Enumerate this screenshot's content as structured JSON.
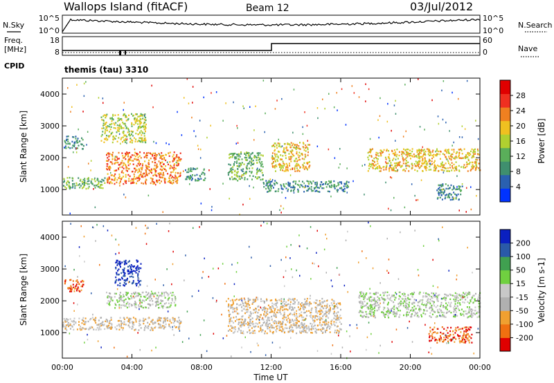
{
  "header": {
    "station": "Wallops Island (fitACF)",
    "beam": "Beam 12",
    "date": "03/Jul/2012"
  },
  "side_labels": {
    "nsky": "N.Sky",
    "nsearch": "N.Search",
    "freq_line1": "Freq.",
    "freq_line2": "[MHz]",
    "nave": "Nave",
    "cpid": "CPID",
    "cpid_value": "themis (tau) 3310"
  },
  "strip_ticks": {
    "noise_left": [
      "10^5",
      "10^0"
    ],
    "noise_right": [
      "10^5",
      "10^0"
    ],
    "freq_left": [
      "18",
      "8"
    ],
    "freq_right": [
      "60",
      "0"
    ]
  },
  "colors": {
    "power": [
      "#0033ff",
      "#2a60b0",
      "#3f8f6e",
      "#5aae5a",
      "#b0d030",
      "#f0c020",
      "#f08020",
      "#f03020",
      "#e00000"
    ],
    "velocity": [
      "#e00000",
      "#f07010",
      "#f0a030",
      "#b0b0b0",
      "#c8c8c8",
      "#70d040",
      "#40a050",
      "#2a5aa8",
      "#0a20c0"
    ]
  },
  "chart_data": [
    {
      "type": "heatmap",
      "panel": "power",
      "xlabel": "Time UT",
      "ylabel": "Slant Range [km]",
      "x_unit": "hours UT",
      "xlim": [
        0,
        24
      ],
      "ylim": [
        200,
        4500
      ],
      "x_tick_labels": [
        "00:00",
        "04:00",
        "08:00",
        "12:00",
        "16:00",
        "20:00",
        "00:00"
      ],
      "y_tick_labels": [
        "1000",
        "2000",
        "3000",
        "4000"
      ],
      "colorbar_label": "Power [dB]",
      "colorbar_ticks": [
        "28",
        "24",
        "20",
        "16",
        "12",
        "8",
        "4"
      ],
      "echo_regions": [
        {
          "t0": 0.0,
          "t1": 2.5,
          "r0": 1050,
          "r1": 1400,
          "level": 3
        },
        {
          "t0": 2.5,
          "t1": 6.8,
          "r0": 1200,
          "r1": 2200,
          "level": 6
        },
        {
          "t0": 2.2,
          "t1": 4.8,
          "r0": 2500,
          "r1": 3400,
          "level": 4
        },
        {
          "t0": 0.1,
          "t1": 1.2,
          "r0": 2300,
          "r1": 2700,
          "level": 2
        },
        {
          "t0": 7.0,
          "t1": 8.2,
          "r0": 1300,
          "r1": 1700,
          "level": 2
        },
        {
          "t0": 9.5,
          "t1": 11.5,
          "r0": 1300,
          "r1": 2200,
          "level": 3
        },
        {
          "t0": 12.0,
          "t1": 14.2,
          "r0": 1600,
          "r1": 2500,
          "level": 5
        },
        {
          "t0": 11.5,
          "t1": 16.5,
          "r0": 950,
          "r1": 1300,
          "level": 2
        },
        {
          "t0": 17.5,
          "t1": 24.0,
          "r0": 1600,
          "r1": 2300,
          "level": 5
        },
        {
          "t0": 21.5,
          "t1": 23.0,
          "r0": 700,
          "r1": 1200,
          "level": 2
        }
      ]
    },
    {
      "type": "heatmap",
      "panel": "velocity",
      "xlabel": "Time UT",
      "ylabel": "Slant Range [km]",
      "x_unit": "hours UT",
      "xlim": [
        0,
        24
      ],
      "ylim": [
        200,
        4500
      ],
      "x_tick_labels": [
        "00:00",
        "04:00",
        "08:00",
        "12:00",
        "16:00",
        "20:00",
        "00:00"
      ],
      "y_tick_labels": [
        "1000",
        "2000",
        "3000",
        "4000"
      ],
      "colorbar_label": "Velocity [m s-1]",
      "colorbar_ticks": [
        "200",
        "100",
        "50",
        "15",
        "-15",
        "-50",
        "-100",
        "-200"
      ],
      "echo_regions": [
        {
          "t0": 0.0,
          "t1": 6.8,
          "r0": 1100,
          "r1": 1500,
          "level": 3
        },
        {
          "t0": 2.5,
          "t1": 6.5,
          "r0": 1800,
          "r1": 2300,
          "level": 4
        },
        {
          "t0": 3.0,
          "t1": 4.5,
          "r0": 2500,
          "r1": 3300,
          "level": 8
        },
        {
          "t0": 0.1,
          "t1": 1.2,
          "r0": 2300,
          "r1": 2700,
          "level": 1
        },
        {
          "t0": 9.5,
          "t1": 16.0,
          "r0": 1000,
          "r1": 2100,
          "level": 3
        },
        {
          "t0": 17.0,
          "t1": 24.0,
          "r0": 1500,
          "r1": 2300,
          "level": 4
        },
        {
          "t0": 21.0,
          "t1": 23.5,
          "r0": 700,
          "r1": 1200,
          "level": 1
        }
      ]
    }
  ]
}
